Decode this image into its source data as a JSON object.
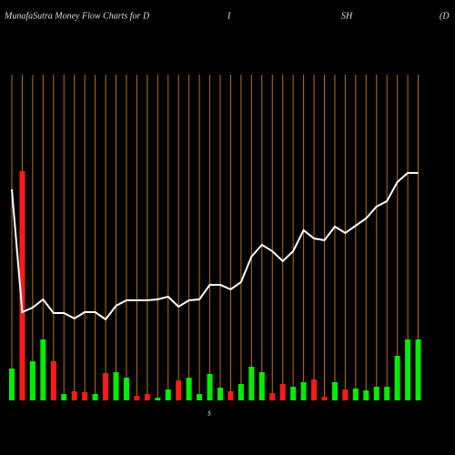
{
  "chart_data": {
    "type": "bar-line",
    "title": [
      "MunafaSutra  Money Flow  Charts for D",
      "I",
      "SH",
      "(D"
    ],
    "axis_note": "$",
    "categories": [
      null,
      null,
      null,
      null,
      null,
      null,
      null,
      null,
      null,
      null,
      null,
      null,
      null,
      null,
      null,
      null,
      null,
      null,
      null,
      null,
      null,
      null,
      null,
      null,
      null,
      null,
      null,
      null,
      null,
      null,
      null,
      null,
      null,
      null,
      null,
      null,
      null,
      null,
      null,
      null
    ],
    "grid": true,
    "grid_color": "#b5731a",
    "ylim": [
      0,
      260
    ],
    "series": [
      {
        "name": null,
        "kind": "bar",
        "colors": [
          "#00ee00",
          "#ff1a1a",
          "#00ee00",
          "#00ee00",
          "#ff1a1a",
          "#00ee00",
          "#ff1a1a",
          "#ff1a1a",
          "#00ee00",
          "#ff1a1a",
          "#00ee00",
          "#00ee00",
          "#ff1a1a",
          "#ff1a1a",
          "#00ee00",
          "#00ee00",
          "#ff1a1a",
          "#00ee00",
          "#00ee00",
          "#00ee00",
          "#00ee00",
          "#ff1a1a",
          "#00ee00",
          "#00ee00",
          "#00ee00",
          "#ff1a1a",
          "#ff1a1a",
          "#00ee00",
          "#00ee00",
          "#ff1a1a",
          "#ff1a1a",
          "#00ee00",
          "#ff1a1a",
          "#00ee00",
          "#00ee00",
          "#00ee00",
          "#00ee00",
          "#00ee00",
          "#00ee00",
          "#00ee00"
        ],
        "values": [
          35,
          252,
          43,
          67,
          43,
          7,
          10,
          9,
          7,
          30,
          31,
          25,
          5,
          7,
          3,
          12,
          22,
          25,
          7,
          29,
          14,
          10,
          18,
          37,
          31,
          8,
          18,
          15,
          20,
          23,
          4,
          20,
          12,
          13,
          11,
          15,
          15,
          49,
          67,
          67
        ]
      },
      {
        "name": null,
        "kind": "line",
        "color": "#ffffff",
        "values": [
          232,
          97,
          102,
          111,
          96,
          96,
          90,
          97,
          97,
          89,
          104,
          110,
          110,
          110,
          111,
          114,
          103,
          110,
          111,
          127,
          127,
          122,
          130,
          158,
          171,
          164,
          153,
          164,
          187,
          178,
          176,
          191,
          184,
          192,
          200,
          213,
          219,
          240,
          250,
          250
        ]
      }
    ]
  }
}
